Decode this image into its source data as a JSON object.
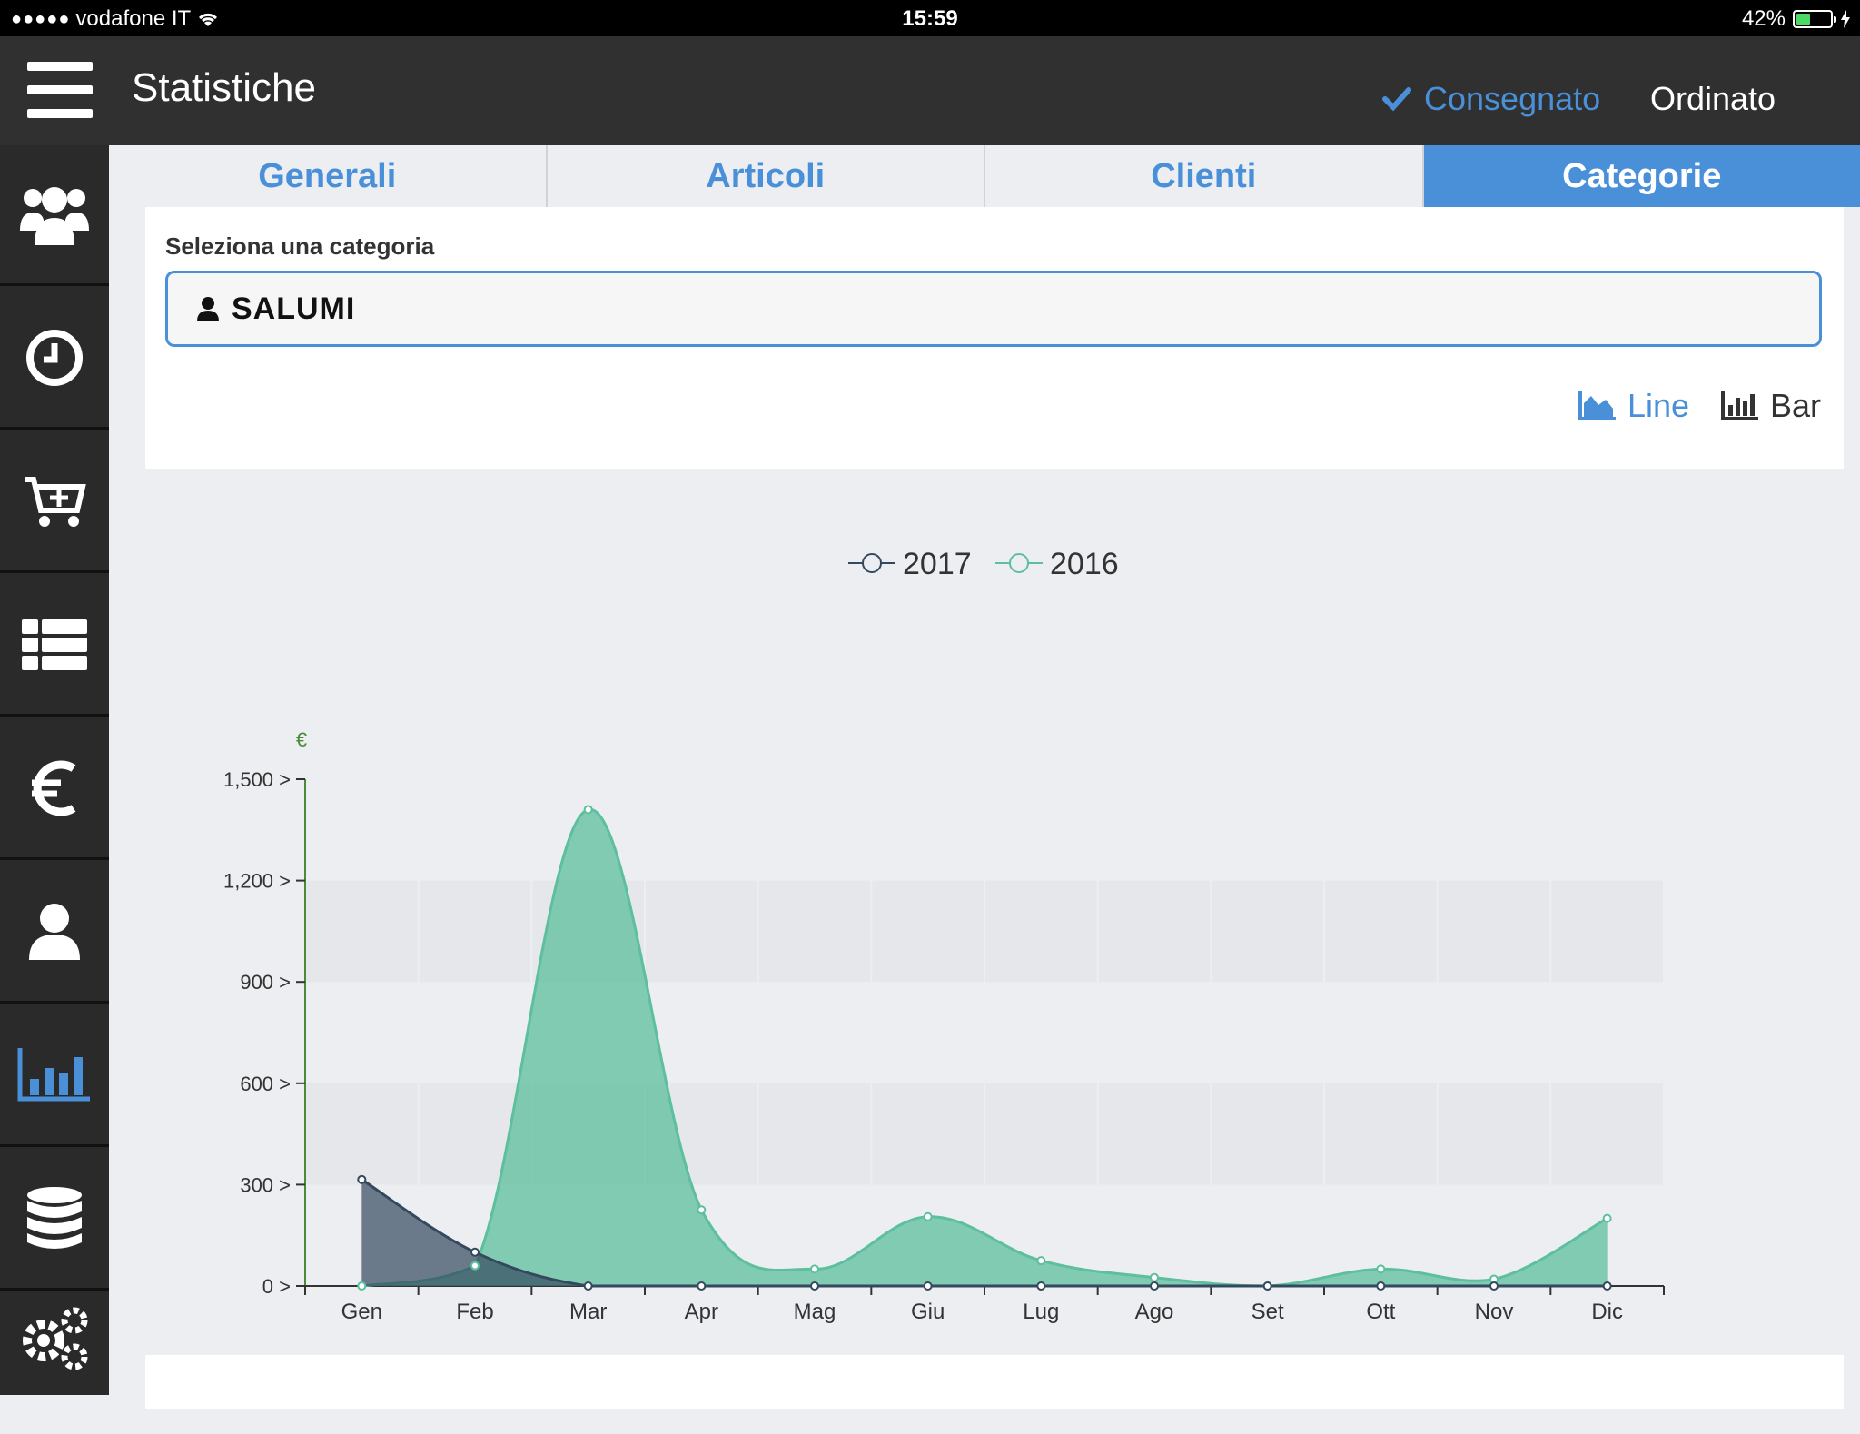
{
  "status_bar": {
    "carrier": "vodafone IT",
    "time": "15:59",
    "battery": "42%",
    "battery_level": 0.42
  },
  "header": {
    "title": "Statistiche",
    "filter_delivered": "Consegnato",
    "filter_ordered": "Ordinato",
    "colors": {
      "bar": "#303030",
      "accent": "#4a90d9"
    }
  },
  "sidebar": {
    "items": [
      {
        "icon": "users-icon"
      },
      {
        "icon": "clock-icon"
      },
      {
        "icon": "cart-add-icon"
      },
      {
        "icon": "list-icon"
      },
      {
        "icon": "euro-icon"
      },
      {
        "icon": "user-icon"
      },
      {
        "icon": "bar-chart-icon",
        "active": true
      },
      {
        "icon": "database-icon"
      },
      {
        "icon": "gears-icon"
      }
    ]
  },
  "tabs": [
    {
      "label": "Generali",
      "active": false
    },
    {
      "label": "Articoli",
      "active": false
    },
    {
      "label": "Clienti",
      "active": false
    },
    {
      "label": "Categorie",
      "active": true
    }
  ],
  "category": {
    "label": "Seleziona una categoria",
    "value": "SALUMI"
  },
  "view_toggle": {
    "line_label": "Line",
    "bar_label": "Bar",
    "selected": "Line"
  },
  "chart_data": {
    "type": "area",
    "ylabel": "€",
    "ylim": [
      0,
      1500
    ],
    "yticks": [
      0,
      300,
      600,
      900,
      1200,
      1500
    ],
    "ytick_suffix": " >",
    "grid": true,
    "legend": "top-center",
    "categories": [
      "Gen",
      "Feb",
      "Mar",
      "Apr",
      "Mag",
      "Giu",
      "Lug",
      "Ago",
      "Set",
      "Ott",
      "Nov",
      "Dic"
    ],
    "series": [
      {
        "name": "2017",
        "color": "#34495e",
        "values": [
          315,
          100,
          0,
          0,
          0,
          0,
          0,
          0,
          0,
          0,
          0,
          0
        ]
      },
      {
        "name": "2016",
        "color": "#5dbf9e",
        "values": [
          0,
          60,
          1410,
          225,
          50,
          205,
          75,
          25,
          0,
          50,
          20,
          200
        ]
      }
    ]
  }
}
